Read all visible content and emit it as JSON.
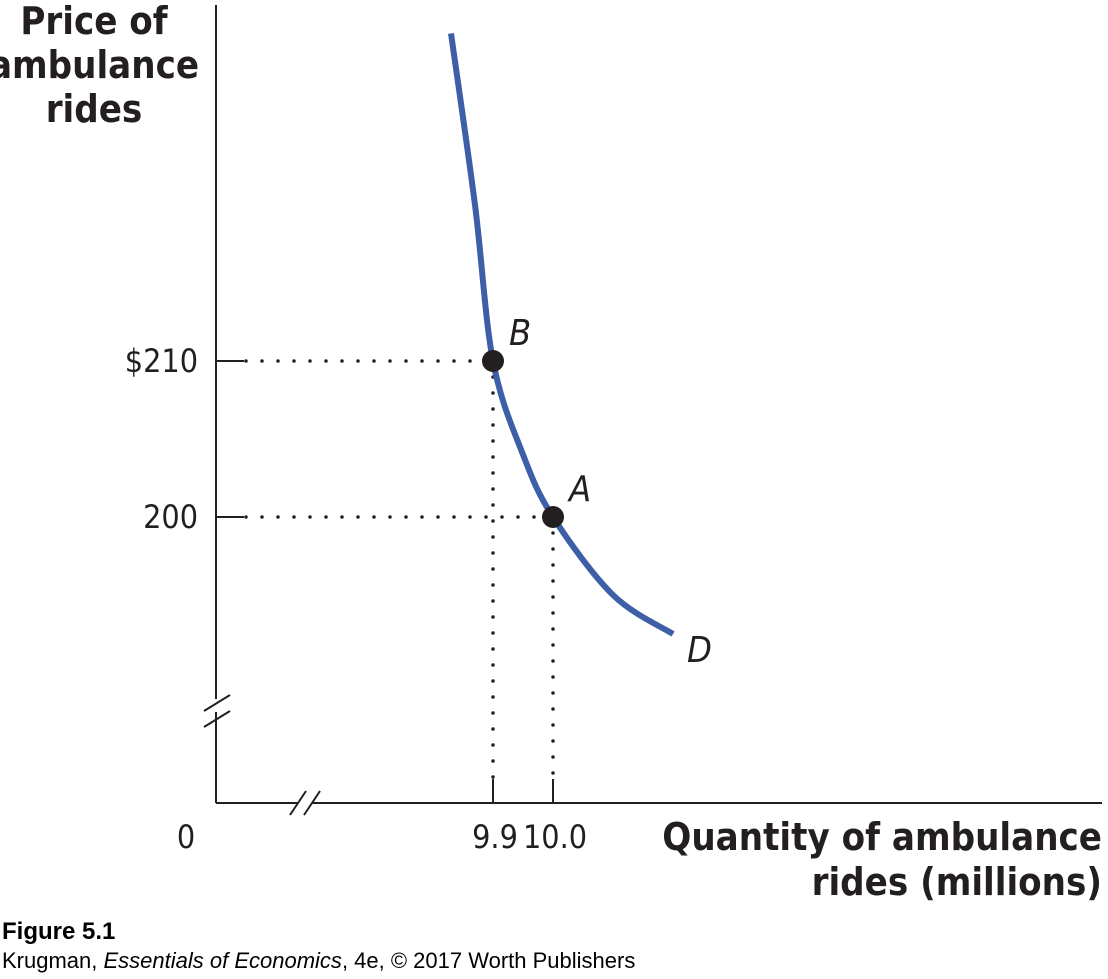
{
  "chart_data": {
    "type": "line",
    "title": "",
    "ylabel_lines": [
      "Price of",
      "ambulance",
      "rides"
    ],
    "xlabel_lines": [
      "Quantity of ambulance",
      "rides (millions)"
    ],
    "origin_label": "0",
    "y_ticks": [
      {
        "value": 210,
        "label": "$210"
      },
      {
        "value": 200,
        "label": "200"
      }
    ],
    "x_ticks": [
      {
        "value": 9.9,
        "label": "9.9"
      },
      {
        "value": 10.0,
        "label": "10.0"
      }
    ],
    "x_axis_broken": true,
    "y_axis_broken": true,
    "series": [
      {
        "name": "D",
        "color": "#3d5fa8",
        "points": [
          {
            "x": 9.83,
            "y": 231
          },
          {
            "x": 9.87,
            "y": 220
          },
          {
            "x": 9.9,
            "y": 210
          },
          {
            "x": 9.95,
            "y": 204
          },
          {
            "x": 10.0,
            "y": 200
          },
          {
            "x": 10.1,
            "y": 195
          },
          {
            "x": 10.2,
            "y": 192.5
          }
        ]
      }
    ],
    "marked_points": [
      {
        "label": "B",
        "x": 9.9,
        "y": 210
      },
      {
        "label": "A",
        "x": 10.0,
        "y": 200
      }
    ],
    "grid": false
  },
  "caption": {
    "figure": "Figure 5.1",
    "source_prefix": "Krugman, ",
    "source_title": "Essentials of Economics",
    "source_suffix": ", 4e, © 2017 Worth Publishers"
  }
}
